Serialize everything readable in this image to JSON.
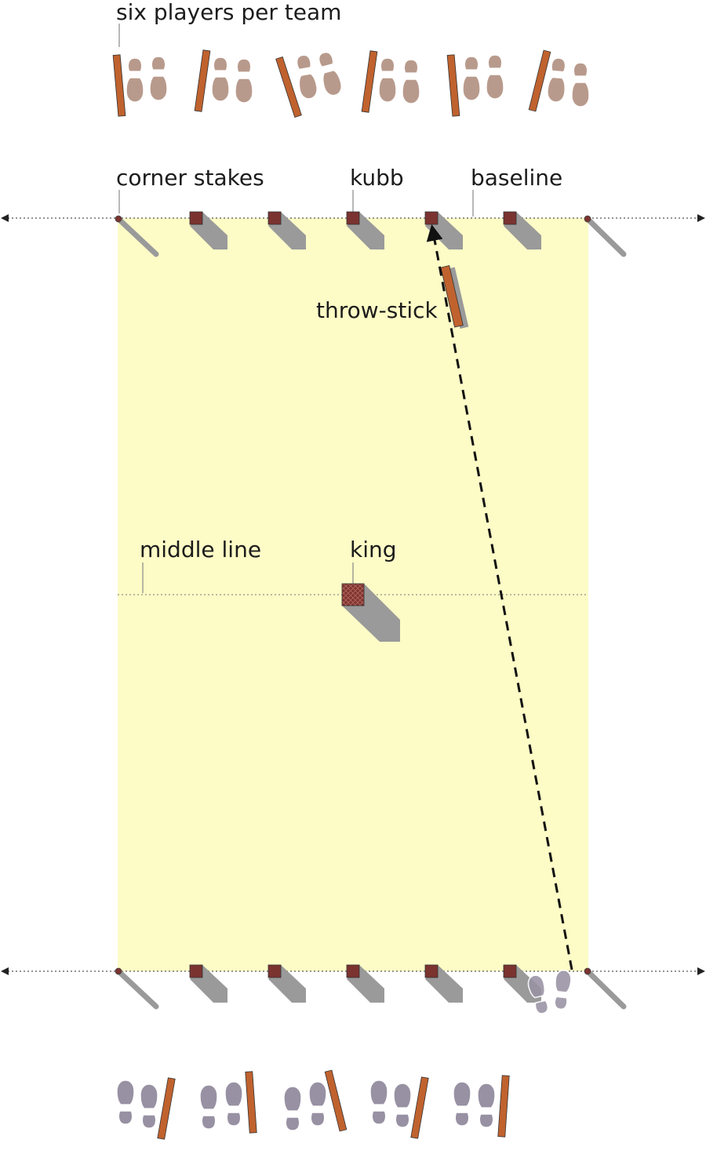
{
  "labels": {
    "players": "six players per team",
    "corner_stakes": "corner stakes",
    "kubb": "kubb",
    "baseline": "baseline",
    "throw_stick": "throw-stick",
    "middle_line": "middle line",
    "king": "king"
  },
  "colors": {
    "field": "#fdfbc6",
    "kubb": "#7b3330",
    "stick": "#c0622e",
    "shadow": "#9a9a9a",
    "team_top_feet": "#b89a8c",
    "team_bottom_feet": "#9891a3",
    "line": "#555555"
  },
  "team_top_count": 6,
  "team_bottom_count": 5,
  "kubbs_per_baseline": 5
}
